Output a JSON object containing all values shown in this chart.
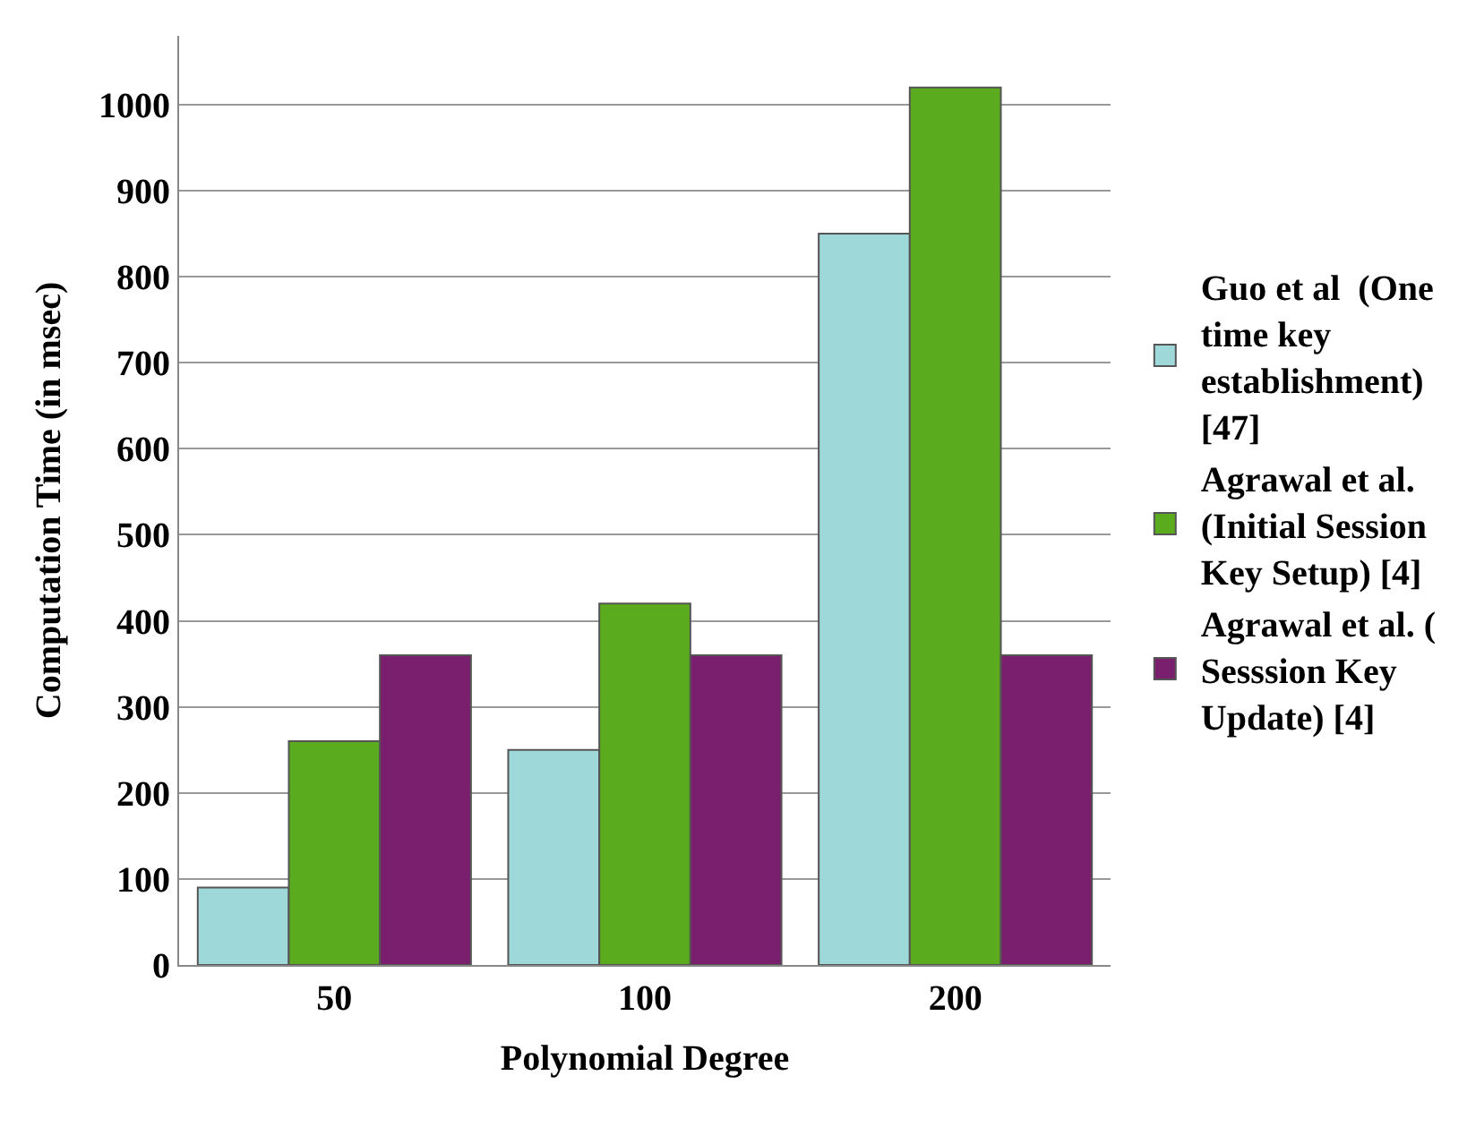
{
  "chart_data": {
    "type": "bar",
    "xlabel": "Polynomial Degree",
    "ylabel": "Computation Time (in msec)",
    "categories": [
      "50",
      "100",
      "200"
    ],
    "series": [
      {
        "name": "Guo et al  (One time key establishment) [47]",
        "color": "#9fd8d8",
        "values": [
          90,
          250,
          850
        ]
      },
      {
        "name": "Agrawal et al. (Initial Session Key Setup) [4]",
        "color": "#5aac1e",
        "values": [
          260,
          420,
          1020
        ]
      },
      {
        "name": "Agrawal et al. ( Sesssion Key Update) [4]",
        "color": "#7a1f6e",
        "values": [
          360,
          360,
          360
        ]
      }
    ],
    "ylim": [
      0,
      1080
    ],
    "yticks": [
      0,
      100,
      200,
      300,
      400,
      500,
      600,
      700,
      800,
      900,
      1000
    ],
    "grid": "y",
    "legend": "right"
  }
}
